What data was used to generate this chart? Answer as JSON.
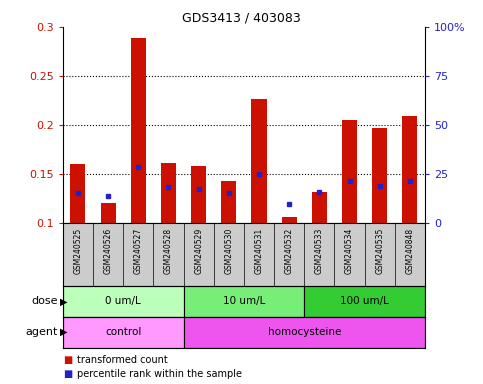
{
  "title": "GDS3413 / 403083",
  "samples": [
    "GSM240525",
    "GSM240526",
    "GSM240527",
    "GSM240528",
    "GSM240529",
    "GSM240530",
    "GSM240531",
    "GSM240532",
    "GSM240533",
    "GSM240534",
    "GSM240535",
    "GSM240848"
  ],
  "red_values": [
    0.16,
    0.12,
    0.289,
    0.161,
    0.158,
    0.143,
    0.226,
    0.106,
    0.131,
    0.205,
    0.197,
    0.209
  ],
  "blue_values": [
    0.13,
    0.127,
    0.157,
    0.136,
    0.134,
    0.13,
    0.15,
    0.119,
    0.131,
    0.143,
    0.138,
    0.143
  ],
  "ylim_left": [
    0.1,
    0.3
  ],
  "ylim_right": [
    0,
    100
  ],
  "yticks_left": [
    0.1,
    0.15,
    0.2,
    0.25,
    0.3
  ],
  "yticks_right": [
    0,
    25,
    50,
    75,
    100
  ],
  "ytick_labels_right": [
    "0",
    "25",
    "50",
    "75",
    "100%"
  ],
  "dose_groups": [
    {
      "label": "0 um/L",
      "start": 0,
      "end": 4
    },
    {
      "label": "10 um/L",
      "start": 4,
      "end": 8
    },
    {
      "label": "100 um/L",
      "start": 8,
      "end": 12
    }
  ],
  "dose_colors": [
    "#bbffbb",
    "#77ee77",
    "#33cc33"
  ],
  "agent_groups": [
    {
      "label": "control",
      "start": 0,
      "end": 4
    },
    {
      "label": "homocysteine",
      "start": 4,
      "end": 12
    }
  ],
  "agent_colors": [
    "#ff99ff",
    "#ee55ee"
  ],
  "legend_items": [
    {
      "color": "#cc1100",
      "label": "transformed count"
    },
    {
      "color": "#2222cc",
      "label": "percentile rank within the sample"
    }
  ],
  "bar_width": 0.5,
  "red_color": "#cc1100",
  "blue_color": "#2222cc",
  "background_color": "#ffffff",
  "sample_label_bg": "#cccccc",
  "dose_label": "dose",
  "agent_label": "agent"
}
